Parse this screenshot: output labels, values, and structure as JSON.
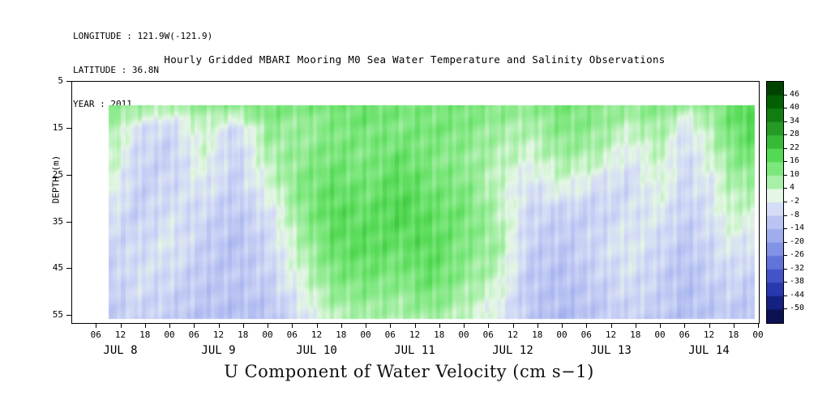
{
  "meta": {
    "longitude": "LONGITUDE : 121.9W(-121.9)",
    "latitude": "LATITUDE : 36.8N",
    "year": "YEAR : 2011"
  },
  "title": "Hourly Gridded MBARI Mooring M0 Sea Water Temperature and Salinity Observations",
  "caption": "U Component of Water Velocity (cm s−1)",
  "chart_data": {
    "type": "heatmap",
    "title": "Hourly Gridded MBARI Mooring M0 Sea Water Temperature and Salinity Observations",
    "ylabel": "DEPTH (m)",
    "y_ticks": [
      5,
      15,
      25,
      35,
      45,
      55
    ],
    "y_range": [
      5,
      56.5
    ],
    "x_range_hours": [
      0,
      168
    ],
    "x_tick_step_hours": 6,
    "hour_labels": [
      "06",
      "12",
      "18",
      "00"
    ],
    "day_labels": [
      "JUL 8",
      "JUL 9",
      "JUL 10",
      "JUL 11",
      "JUL 12",
      "JUL 13",
      "JUL 14"
    ],
    "legend_position": "right",
    "grid": false,
    "colorbar": {
      "range": [
        52,
        -56
      ],
      "band_step": 6,
      "ticks": [
        46,
        40,
        34,
        28,
        22,
        16,
        10,
        4,
        -2,
        -8,
        -14,
        -20,
        -26,
        -32,
        -38,
        -44,
        -50
      ],
      "stops": [
        {
          "v": 49,
          "c": "#004300"
        },
        {
          "v": 43,
          "c": "#026002"
        },
        {
          "v": 37,
          "c": "#117d11"
        },
        {
          "v": 31,
          "c": "#259b25"
        },
        {
          "v": 25,
          "c": "#37bb37"
        },
        {
          "v": 19,
          "c": "#53d953"
        },
        {
          "v": 13,
          "c": "#7ce77c"
        },
        {
          "v": 7,
          "c": "#a8efa8"
        },
        {
          "v": 1,
          "c": "#e4f7e4"
        },
        {
          "v": -5,
          "c": "#d5dcf6"
        },
        {
          "v": -11,
          "c": "#bac4f2"
        },
        {
          "v": -17,
          "c": "#9fadee"
        },
        {
          "v": -23,
          "c": "#8292e5"
        },
        {
          "v": -29,
          "c": "#6273d9"
        },
        {
          "v": -35,
          "c": "#4254c7"
        },
        {
          "v": -41,
          "c": "#2838ae"
        },
        {
          "v": -47,
          "c": "#152180"
        },
        {
          "v": -53,
          "c": "#0b1252"
        }
      ]
    },
    "field": {
      "units": "cm s-1",
      "t": [
        10,
        16,
        24,
        32,
        40,
        48,
        56,
        64,
        72,
        80,
        88,
        96,
        104,
        112,
        120,
        128,
        136,
        144,
        150,
        156,
        161,
        166
      ],
      "depth": [
        10,
        15,
        21,
        27,
        33,
        40,
        47,
        52,
        56
      ],
      "t_extent": [
        9,
        167
      ],
      "depth_extent": [
        10,
        55.7
      ],
      "values": [
        [
          12,
          10,
          6,
          10,
          12,
          14,
          12,
          14,
          16,
          14,
          12,
          14,
          12,
          10,
          14,
          12,
          10,
          12,
          8,
          10,
          16,
          20
        ],
        [
          8,
          -4,
          -6,
          4,
          -6,
          10,
          8,
          12,
          14,
          12,
          14,
          12,
          8,
          6,
          12,
          10,
          4,
          8,
          -4,
          6,
          14,
          18
        ],
        [
          4,
          -6,
          -8,
          2,
          -8,
          6,
          10,
          14,
          12,
          16,
          12,
          10,
          6,
          2,
          8,
          6,
          -2,
          4,
          -6,
          2,
          10,
          14
        ],
        [
          2,
          -8,
          -6,
          -2,
          -8,
          2,
          12,
          16,
          14,
          18,
          14,
          12,
          4,
          -4,
          2,
          -4,
          -6,
          2,
          -6,
          -2,
          6,
          8
        ],
        [
          -4,
          -8,
          -4,
          -6,
          -10,
          -4,
          10,
          18,
          16,
          20,
          16,
          14,
          6,
          -6,
          -8,
          -8,
          -4,
          -2,
          -8,
          -4,
          4,
          2
        ],
        [
          -6,
          -6,
          -2,
          -8,
          -12,
          -6,
          6,
          16,
          18,
          16,
          18,
          12,
          8,
          -8,
          -10,
          -6,
          -2,
          -6,
          -10,
          -6,
          -2,
          -4
        ],
        [
          -8,
          -4,
          -6,
          -10,
          -10,
          -8,
          2,
          12,
          14,
          12,
          16,
          10,
          4,
          -10,
          -12,
          -8,
          -4,
          -8,
          -12,
          -8,
          -6,
          -8
        ],
        [
          -8,
          -6,
          -8,
          -10,
          -12,
          -10,
          -2,
          8,
          10,
          8,
          12,
          6,
          0,
          -10,
          -12,
          -10,
          -6,
          -8,
          -12,
          -10,
          -8,
          -10
        ],
        [
          -10,
          -8,
          -8,
          -12,
          -12,
          -12,
          -4,
          4,
          6,
          6,
          8,
          4,
          -2,
          -10,
          -14,
          -10,
          -8,
          -10,
          -12,
          -10,
          -10,
          -12
        ]
      ]
    }
  }
}
